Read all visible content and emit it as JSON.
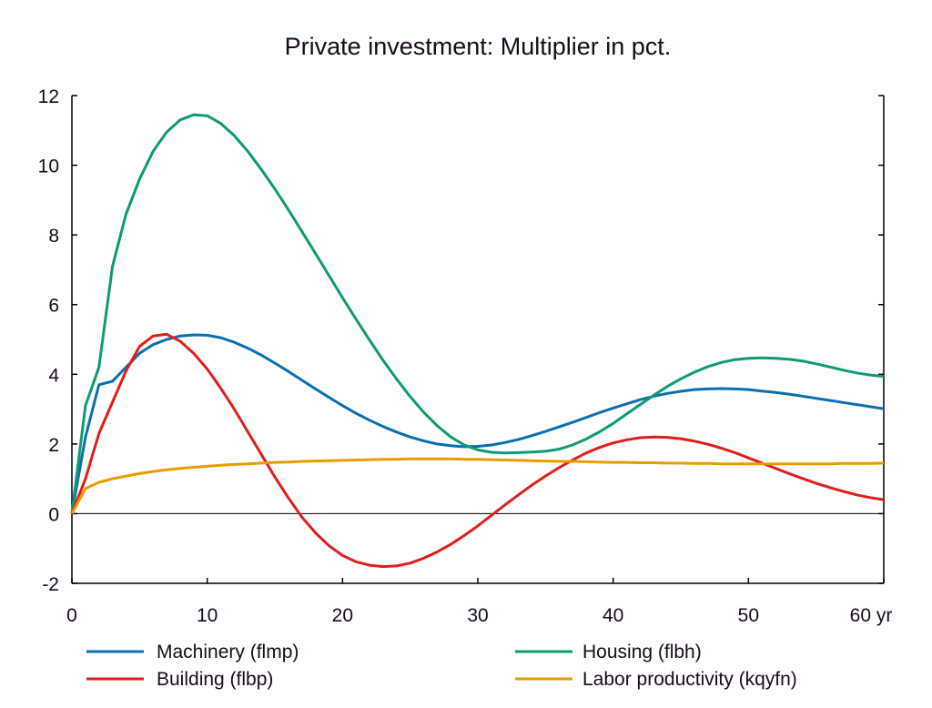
{
  "chart_data": {
    "type": "line",
    "title": "Private investment: Multiplier in pct.",
    "xlabel": "",
    "ylabel": "",
    "xlim": [
      0,
      60
    ],
    "ylim": [
      -2,
      12
    ],
    "x_ticks": [
      0,
      10,
      20,
      30,
      40,
      50,
      60
    ],
    "x_tick_labels": [
      "0",
      "10",
      "20",
      "30",
      "40",
      "50",
      "60 yr"
    ],
    "y_ticks": [
      -2,
      0,
      2,
      4,
      6,
      8,
      10,
      12
    ],
    "y_tick_labels": [
      "-2",
      "0",
      "2",
      "4",
      "6",
      "8",
      "10",
      "12"
    ],
    "grid": false,
    "zero_line": true,
    "legend_position": "bottom",
    "x": [
      0,
      1,
      2,
      3,
      4,
      5,
      6,
      7,
      8,
      9,
      10,
      11,
      12,
      13,
      14,
      15,
      16,
      17,
      18,
      19,
      20,
      21,
      22,
      23,
      24,
      25,
      26,
      27,
      28,
      29,
      30,
      31,
      32,
      33,
      34,
      35,
      36,
      37,
      38,
      39,
      40,
      41,
      42,
      43,
      44,
      45,
      46,
      47,
      48,
      49,
      50,
      51,
      52,
      53,
      54,
      55,
      56,
      57,
      58,
      59,
      60
    ],
    "series": [
      {
        "name": "Machinery (flmp)",
        "color": "#0a6fb0",
        "values": [
          0,
          2.2,
          3.7,
          3.8,
          4.2,
          4.6,
          4.85,
          5.0,
          5.1,
          5.13,
          5.12,
          5.05,
          4.92,
          4.75,
          4.55,
          4.32,
          4.08,
          3.83,
          3.58,
          3.34,
          3.1,
          2.88,
          2.68,
          2.5,
          2.34,
          2.2,
          2.09,
          2.0,
          1.95,
          1.92,
          1.93,
          1.97,
          2.04,
          2.13,
          2.24,
          2.36,
          2.49,
          2.62,
          2.76,
          2.9,
          3.03,
          3.15,
          3.27,
          3.37,
          3.45,
          3.51,
          3.56,
          3.58,
          3.59,
          3.58,
          3.56,
          3.52,
          3.48,
          3.43,
          3.37,
          3.31,
          3.25,
          3.19,
          3.13,
          3.07,
          3.01
        ]
      },
      {
        "name": "Housing (flbh)",
        "color": "#0d9b73",
        "values": [
          0,
          3.1,
          4.2,
          7.1,
          8.6,
          9.6,
          10.4,
          10.95,
          11.3,
          11.45,
          11.42,
          11.2,
          10.85,
          10.4,
          9.88,
          9.32,
          8.72,
          8.1,
          7.47,
          6.83,
          6.2,
          5.58,
          4.98,
          4.4,
          3.86,
          3.36,
          2.91,
          2.52,
          2.2,
          1.97,
          1.83,
          1.76,
          1.74,
          1.75,
          1.77,
          1.79,
          1.85,
          1.97,
          2.14,
          2.35,
          2.59,
          2.86,
          3.13,
          3.4,
          3.65,
          3.87,
          4.06,
          4.22,
          4.34,
          4.42,
          4.46,
          4.47,
          4.46,
          4.43,
          4.38,
          4.3,
          4.21,
          4.12,
          4.04,
          3.98,
          3.94
        ]
      },
      {
        "name": "Building (flbp)",
        "color": "#e01e1e",
        "values": [
          0,
          1.0,
          2.3,
          3.2,
          4.1,
          4.8,
          5.1,
          5.15,
          4.95,
          4.6,
          4.15,
          3.6,
          3.0,
          2.35,
          1.7,
          1.05,
          0.45,
          -0.1,
          -0.55,
          -0.92,
          -1.2,
          -1.38,
          -1.48,
          -1.52,
          -1.5,
          -1.42,
          -1.28,
          -1.1,
          -0.88,
          -0.63,
          -0.35,
          -0.05,
          0.25,
          0.54,
          0.82,
          1.08,
          1.32,
          1.54,
          1.74,
          1.9,
          2.03,
          2.12,
          2.18,
          2.2,
          2.19,
          2.15,
          2.08,
          1.99,
          1.88,
          1.75,
          1.6,
          1.45,
          1.3,
          1.15,
          1.01,
          0.87,
          0.75,
          0.64,
          0.54,
          0.46,
          0.4
        ]
      },
      {
        "name": "Labor productivity (kqyfn)",
        "color": "#e69d00",
        "values": [
          0,
          0.72,
          0.9,
          1.0,
          1.08,
          1.15,
          1.21,
          1.26,
          1.3,
          1.33,
          1.36,
          1.39,
          1.41,
          1.43,
          1.45,
          1.47,
          1.48,
          1.5,
          1.51,
          1.52,
          1.53,
          1.54,
          1.55,
          1.56,
          1.56,
          1.57,
          1.57,
          1.57,
          1.57,
          1.56,
          1.56,
          1.55,
          1.54,
          1.53,
          1.52,
          1.51,
          1.5,
          1.5,
          1.49,
          1.48,
          1.47,
          1.47,
          1.46,
          1.46,
          1.45,
          1.45,
          1.44,
          1.44,
          1.43,
          1.43,
          1.43,
          1.43,
          1.43,
          1.43,
          1.43,
          1.43,
          1.43,
          1.44,
          1.44,
          1.44,
          1.45
        ]
      }
    ]
  }
}
